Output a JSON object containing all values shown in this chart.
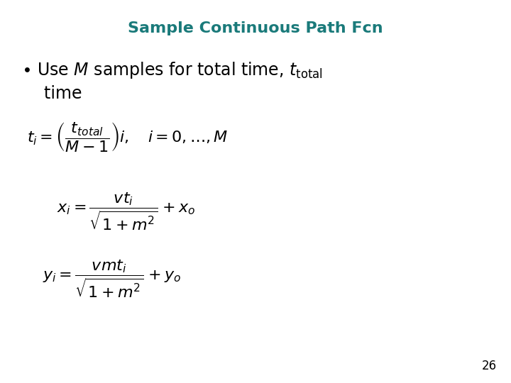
{
  "title": "Sample Continuous Path Fcn",
  "title_color": "#1a7a7a",
  "title_fontsize": 16,
  "bullet_line1": "$\\bullet$ Use $M$ samples for total time, $t_{\\mathrm{total}}$",
  "bullet_line2": "  time",
  "bullet_fontsize": 17,
  "eq1": "$t_i = \\left(\\dfrac{t_{total}}{M-1}\\right)i, \\quad i = 0, \\ldots, M$",
  "eq2": "$x_i = \\dfrac{vt_i}{\\sqrt{1+m^2}} + x_o$",
  "eq3": "$y_i = \\dfrac{vmt_i}{\\sqrt{1+m^2}} + y_o$",
  "eq_fontsize": 16,
  "page_number": "26",
  "bg_color": "#ffffff"
}
